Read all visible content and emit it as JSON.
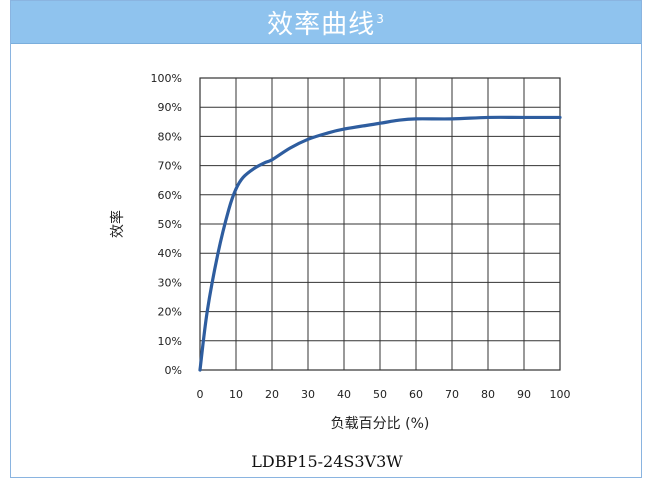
{
  "header": {
    "title": "效率曲线",
    "title_superscript": "3"
  },
  "model": "LDBP15-24S3V3W",
  "chart_data": {
    "type": "line",
    "title": "",
    "xlabel": "负载百分比 (%)",
    "ylabel": "效率",
    "xlim": [
      0,
      100
    ],
    "ylim": [
      0,
      100
    ],
    "x_ticks": [
      "0",
      "10",
      "20",
      "30",
      "40",
      "50",
      "60",
      "70",
      "80",
      "90",
      "100"
    ],
    "y_ticks": [
      "0%",
      "10%",
      "20%",
      "30%",
      "40%",
      "50%",
      "60%",
      "70%",
      "80%",
      "90%",
      "100%"
    ],
    "grid": true,
    "colors": {
      "line": "#2e5d9f",
      "grid": "#333333",
      "header": "#8fc3ee"
    },
    "series": [
      {
        "x": [
          0,
          2,
          5,
          8,
          10,
          12,
          15,
          18,
          20,
          25,
          30,
          35,
          40,
          50,
          55,
          60,
          70,
          80,
          90,
          100
        ],
        "values": [
          0,
          20,
          40,
          55,
          62,
          66,
          69,
          71,
          72,
          76,
          79,
          81,
          82.5,
          84.5,
          85.5,
          86,
          86,
          86.5,
          86.5,
          86.5
        ]
      }
    ]
  }
}
